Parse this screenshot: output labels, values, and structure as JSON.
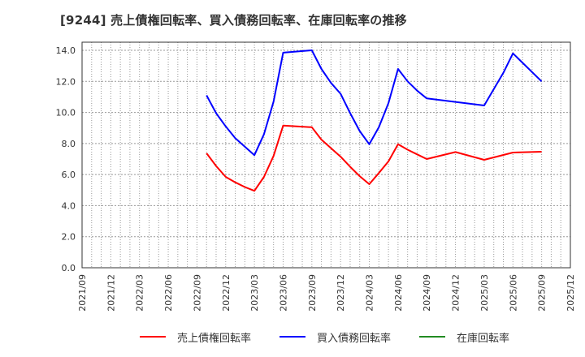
{
  "title": "[9244]  売上債権回転率、買入債務回転率、在庫回転率の推移",
  "colors": {
    "receivables": "#ff0000",
    "payables": "#0000ff",
    "inventory": "#228b22",
    "grid": "#999999",
    "axis": "#333333"
  },
  "legend": [
    {
      "label": "売上債権回転率",
      "color": "#ff0000"
    },
    {
      "label": "買入債務回転率",
      "color": "#0000ff"
    },
    {
      "label": "在庫回転率",
      "color": "#228b22"
    }
  ],
  "chart_data": {
    "type": "line",
    "title": "[9244]  売上債権回転率、買入債務回転率、在庫回転率の推移",
    "xlabel": "",
    "ylabel": "",
    "ylim": [
      0,
      14
    ],
    "yticks": [
      "0.0",
      "2.0",
      "4.0",
      "6.0",
      "8.0",
      "10.0",
      "12.0",
      "14.0"
    ],
    "xticks": [
      "2021/09",
      "2021/12",
      "2022/03",
      "2022/06",
      "2022/09",
      "2022/12",
      "2023/03",
      "2023/06",
      "2023/09",
      "2023/12",
      "2024/03",
      "2024/06",
      "2024/09",
      "2024/12",
      "2025/03",
      "2025/06",
      "2025/09",
      "2025/12"
    ],
    "x_range": [
      "2021/09",
      "2025/12"
    ],
    "grid": true,
    "legend_position": "bottom",
    "series": [
      {
        "name": "売上債権回転率",
        "color": "#ff0000",
        "points": [
          [
            "2022/10",
            7.37
          ],
          [
            "2022/11",
            6.55
          ],
          [
            "2022/12",
            5.85
          ],
          [
            "2023/01",
            5.5
          ],
          [
            "2023/02",
            5.2
          ],
          [
            "2023/03",
            4.95
          ],
          [
            "2023/04",
            5.85
          ],
          [
            "2023/05",
            7.2
          ],
          [
            "2023/06",
            9.15
          ],
          [
            "2023/09",
            9.05
          ],
          [
            "2023/10",
            8.25
          ],
          [
            "2023/11",
            7.7
          ],
          [
            "2023/12",
            7.15
          ],
          [
            "2024/01",
            6.5
          ],
          [
            "2024/02",
            5.9
          ],
          [
            "2024/03",
            5.38
          ],
          [
            "2024/04",
            6.1
          ],
          [
            "2024/05",
            6.85
          ],
          [
            "2024/06",
            7.95
          ],
          [
            "2024/07",
            7.6
          ],
          [
            "2024/08",
            7.3
          ],
          [
            "2024/09",
            7.0
          ],
          [
            "2024/12",
            7.45
          ],
          [
            "2025/03",
            6.95
          ],
          [
            "2025/06",
            7.42
          ],
          [
            "2025/09",
            7.47
          ]
        ]
      },
      {
        "name": "買入債務回転率",
        "color": "#0000ff",
        "points": [
          [
            "2022/10",
            11.1
          ],
          [
            "2022/11",
            9.95
          ],
          [
            "2022/12",
            9.1
          ],
          [
            "2023/01",
            8.35
          ],
          [
            "2023/02",
            7.8
          ],
          [
            "2023/03",
            7.25
          ],
          [
            "2023/04",
            8.6
          ],
          [
            "2023/05",
            10.7
          ],
          [
            "2023/06",
            13.85
          ],
          [
            "2023/09",
            14.0
          ],
          [
            "2023/10",
            12.8
          ],
          [
            "2023/11",
            11.9
          ],
          [
            "2023/12",
            11.2
          ],
          [
            "2024/01",
            9.95
          ],
          [
            "2024/02",
            8.8
          ],
          [
            "2024/03",
            7.95
          ],
          [
            "2024/04",
            9.05
          ],
          [
            "2024/05",
            10.6
          ],
          [
            "2024/06",
            12.8
          ],
          [
            "2024/07",
            12.0
          ],
          [
            "2024/08",
            11.4
          ],
          [
            "2024/09",
            10.9
          ],
          [
            "2025/03",
            10.45
          ],
          [
            "2025/04",
            11.5
          ],
          [
            "2025/05",
            12.55
          ],
          [
            "2025/06",
            13.8
          ],
          [
            "2025/09",
            12.0
          ]
        ]
      },
      {
        "name": "在庫回転率",
        "color": "#228b22",
        "points": []
      }
    ]
  }
}
